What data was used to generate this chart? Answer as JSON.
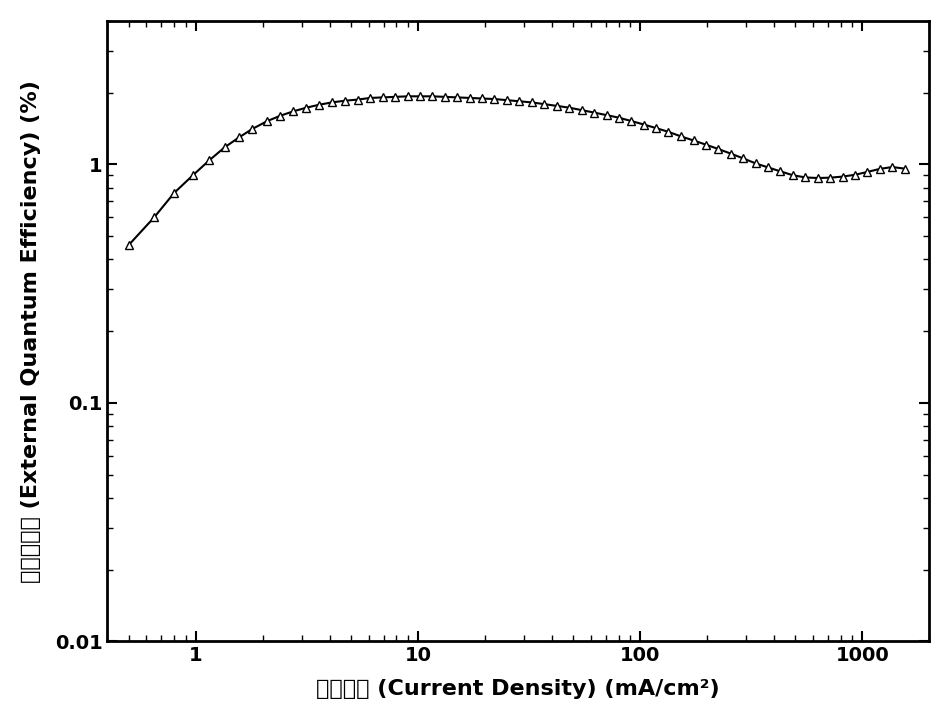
{
  "xlabel": "电流密度 (Current Density) (mA/cm²)",
  "ylabel": "外量子效率 (External Quantum Efficiency) (%)",
  "xlim": [
    0.4,
    2000
  ],
  "ylim": [
    0.01,
    4.0
  ],
  "background_color": "#ffffff",
  "line_color": "#000000",
  "marker": "^",
  "marker_facecolor": "white",
  "marker_edgecolor": "#000000",
  "marker_size": 6,
  "line_width": 1.5,
  "x_data": [
    0.5,
    0.65,
    0.8,
    0.97,
    1.15,
    1.35,
    1.57,
    1.8,
    2.1,
    2.4,
    2.75,
    3.15,
    3.6,
    4.1,
    4.7,
    5.35,
    6.1,
    6.95,
    7.9,
    9.0,
    10.2,
    11.6,
    13.2,
    15.0,
    17.1,
    19.4,
    22.1,
    25.1,
    28.6,
    32.5,
    37.0,
    42.1,
    47.9,
    54.5,
    62.0,
    70.6,
    80.3,
    91.3,
    104.0,
    118.0,
    134.0,
    153.0,
    174.0,
    198.0,
    225.0,
    256.0,
    291.0,
    331.0,
    376.0,
    428.0,
    487.0,
    554.0,
    630.0,
    717.0,
    815.0,
    927.0,
    1055.0,
    1200.0,
    1365.0,
    1553.0
  ],
  "y_data": [
    0.46,
    0.6,
    0.76,
    0.9,
    1.04,
    1.18,
    1.3,
    1.41,
    1.52,
    1.6,
    1.67,
    1.73,
    1.78,
    1.82,
    1.85,
    1.87,
    1.9,
    1.91,
    1.92,
    1.93,
    1.93,
    1.93,
    1.92,
    1.91,
    1.9,
    1.89,
    1.88,
    1.86,
    1.84,
    1.82,
    1.79,
    1.76,
    1.73,
    1.69,
    1.65,
    1.61,
    1.57,
    1.52,
    1.47,
    1.42,
    1.37,
    1.31,
    1.26,
    1.21,
    1.16,
    1.11,
    1.06,
    1.01,
    0.972,
    0.935,
    0.901,
    0.882,
    0.877,
    0.88,
    0.889,
    0.905,
    0.93,
    0.958,
    0.975,
    0.96
  ],
  "xtick_labels": [
    "1",
    "10",
    "100",
    "1000"
  ],
  "xtick_values": [
    1,
    10,
    100,
    1000
  ],
  "ytick_labels": [
    "0.01",
    "0.1",
    "1"
  ],
  "ytick_values": [
    0.01,
    0.1,
    1
  ],
  "label_fontsize": 16,
  "tick_fontsize": 14,
  "tick_fontweight": "bold",
  "label_fontweight": "bold"
}
